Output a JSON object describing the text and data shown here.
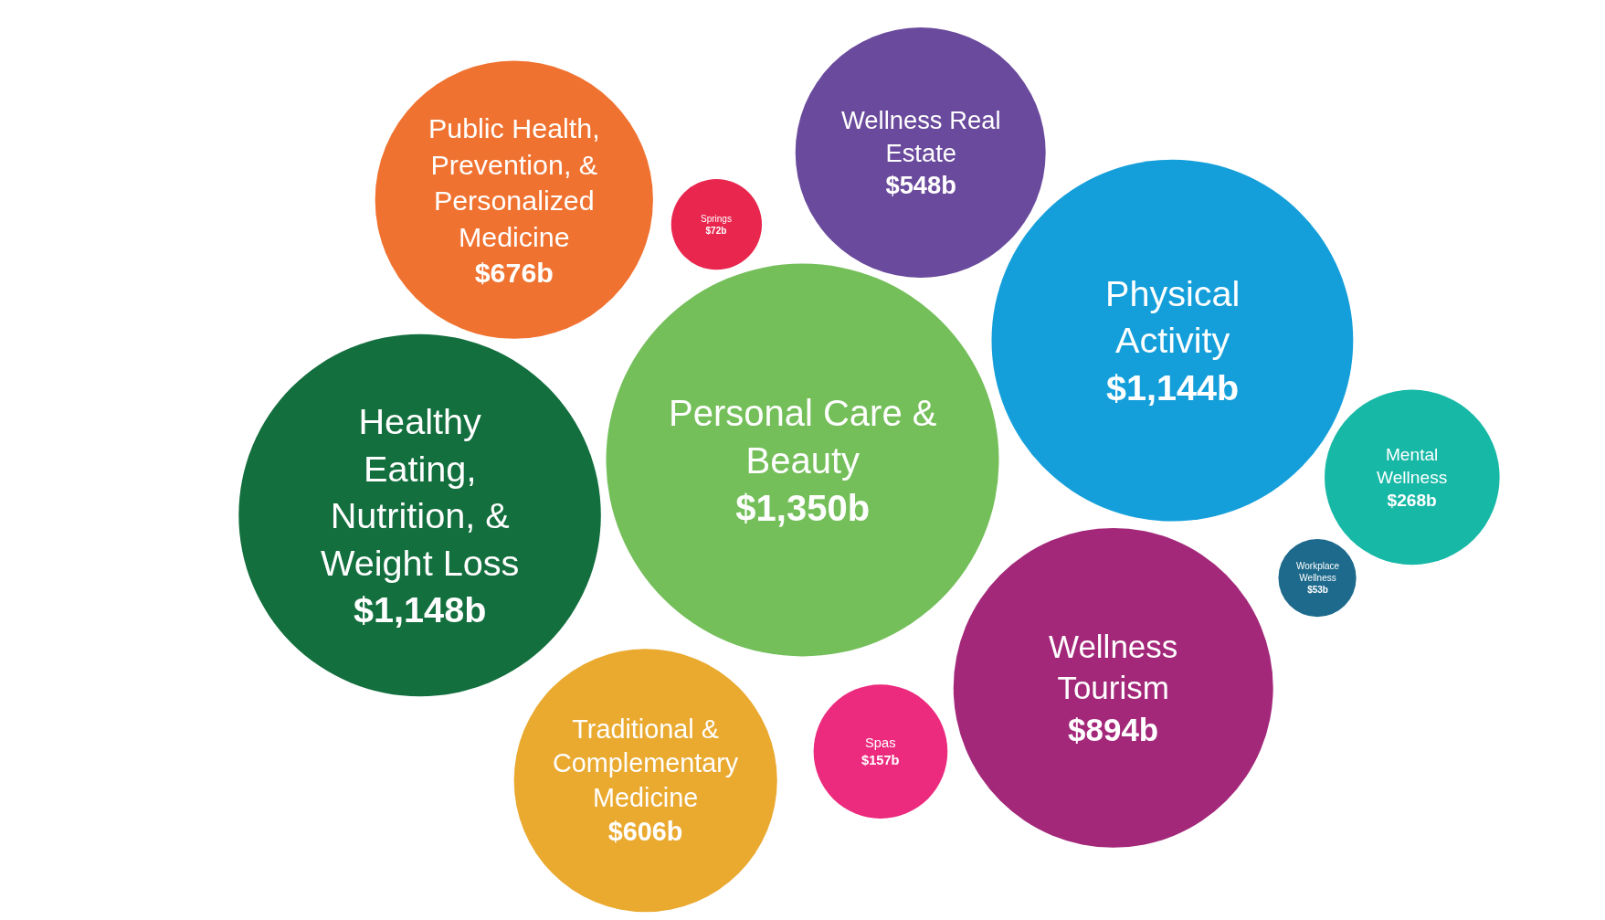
{
  "chart_data": {
    "type": "other",
    "categories": [
      "Traditional & Complementary Medicine",
      "Mental Wellness",
      "Wellness Tourism",
      "Personal Care & Beauty",
      "Wellness Real Estate",
      "Public Health, Prevention, & Personalized Medicine",
      "Workplace Wellness",
      "Springs",
      "Healthy Eating, Nutrition, & Weight Loss",
      "Physical Activity",
      "Spas"
    ],
    "values": [
      606,
      268,
      894,
      1350,
      548,
      676,
      53,
      72,
      1148,
      1144,
      157
    ],
    "value_labels": [
      "$606b",
      "$268b",
      "$894b",
      "$1,350b",
      "$548b",
      "$676b",
      "$53b",
      "$72b",
      "$1,148b",
      "$1,144b",
      "$157b"
    ],
    "colors": [
      "#eaa92f",
      "#17b8a6",
      "#a3287a",
      "#74bf5a",
      "#6a4a9c",
      "#f07230",
      "#1d6a8c",
      "#e8264e",
      "#136f3e",
      "#159fda",
      "#ec2a7e"
    ]
  }
}
